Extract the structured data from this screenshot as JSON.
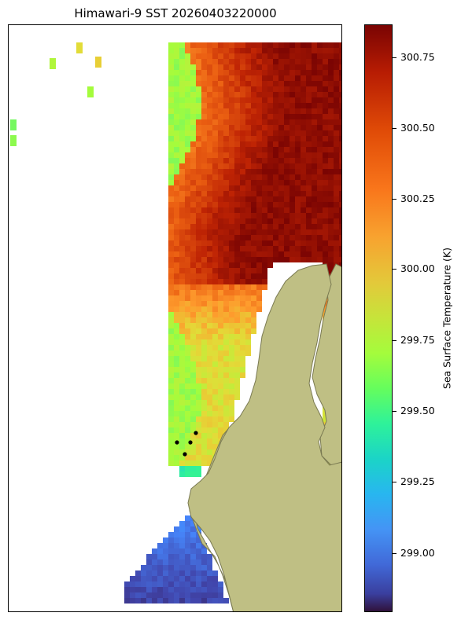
{
  "chart_data": {
    "type": "heatmap",
    "title": "Himawari-9 SST 20260403220000",
    "colorbar": {
      "label": "Sea Surface Temperature (K)",
      "ticks": [
        "300.75",
        "300.50",
        "300.25",
        "300.00",
        "299.75",
        "299.50",
        "299.25",
        "299.00"
      ],
      "range": [
        298.8,
        300.87
      ],
      "colormap": "turbo"
    },
    "land_color": "#bfbf84",
    "land_edge_color": "#7a7a52",
    "marker_color": "#000000",
    "marker_count": 4,
    "grid": false
  }
}
